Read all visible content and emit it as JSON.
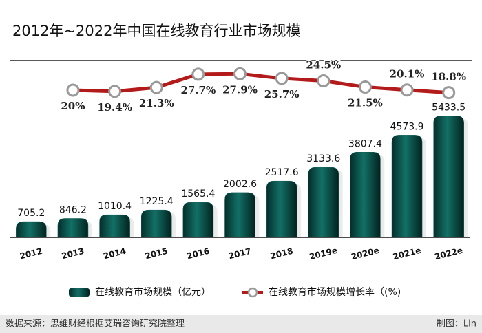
{
  "chart_data": {
    "type": "bar",
    "title": "2012年~2022年中国在线教育行业市场规模",
    "categories": [
      "2012",
      "2013",
      "2014",
      "2015",
      "2016",
      "2017",
      "2018",
      "2019e",
      "2020e",
      "2021e",
      "2022e"
    ],
    "series": [
      {
        "name": "在线教育市场规模（亿元）",
        "type": "bar",
        "color": "#0d5c55",
        "values": [
          705.2,
          846.2,
          1010.4,
          1225.4,
          1565.4,
          2002.6,
          2517.6,
          3133.6,
          3807.4,
          4573.9,
          5433.5
        ]
      },
      {
        "name": "在线教育市场规模增长率（(%)",
        "type": "line",
        "axis": "y2",
        "color": "#b31b1b",
        "values": [
          null,
          20,
          19.4,
          21.3,
          27.7,
          27.9,
          25.7,
          24.5,
          21.5,
          20.1,
          18.8
        ],
        "value_labels": [
          null,
          "20%",
          "19.4%",
          "21.3%",
          "27.7%",
          "27.9%",
          "25.7%",
          "24.5%",
          "21.5%",
          "20.1%",
          "18.8%"
        ]
      }
    ],
    "ylim": [
      0,
      6000
    ],
    "y2lim": [
      15,
      30
    ],
    "source": "数据来源：思维财经根据艾瑞咨询研究院整理",
    "credit": "制图：Lin"
  }
}
